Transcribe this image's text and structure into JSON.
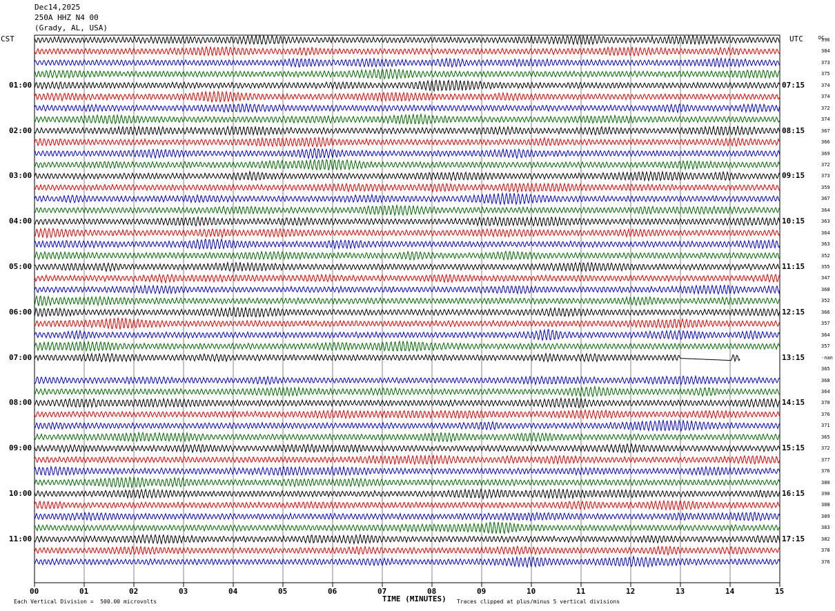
{
  "header": {
    "date": "Dec14,2025",
    "station": "250A HHZ N4 00",
    "location": "(Grady, AL, USA)"
  },
  "left_tz": "CST",
  "right_tz": "UTC",
  "dc_label": "DC",
  "footer": {
    "scale": "Each Vertical Division =  500.00 microvolts",
    "clip": "Traces clipped at plus/minus 5 vertical divisions"
  },
  "chart_data": {
    "type": "line",
    "title": "Dec14,2025 250A HHZ N4 00 (Grady, AL, USA)",
    "xlabel": "TIME (MINUTES)",
    "ylabel": "",
    "xlim": [
      0,
      15
    ],
    "x_ticks": [
      "00",
      "01",
      "02",
      "03",
      "04",
      "05",
      "06",
      "07",
      "08",
      "09",
      "10",
      "11",
      "12",
      "13",
      "14",
      "15"
    ],
    "trace_colors": [
      "#000000",
      "#e00000",
      "#0000cc",
      "#006600"
    ],
    "row_minutes": 15,
    "left_hour_labels": [
      "01:00",
      "02:00",
      "03:00",
      "04:00",
      "05:00",
      "06:00",
      "07:00",
      "08:00",
      "09:00",
      "10:00",
      "11:00"
    ],
    "right_hour_labels": [
      "07:15",
      "08:15",
      "09:15",
      "10:15",
      "11:15",
      "12:15",
      "13:15",
      "14:15",
      "15:15",
      "16:15",
      "17:15"
    ],
    "dc_values": [
      "396",
      "384",
      "373",
      "375",
      "374",
      "374",
      "372",
      "374",
      "367",
      "366",
      "369",
      "372",
      "373",
      "359",
      "367",
      "364",
      "363",
      "364",
      "363",
      "352",
      "355",
      "347",
      "368",
      "352",
      "366",
      "357",
      "364",
      "357",
      "-nan",
      "365",
      "368",
      "364",
      "370",
      "376",
      "371",
      "365",
      "372",
      "377",
      "376",
      "380",
      "390",
      "388",
      "389",
      "383",
      "382",
      "378",
      "376"
    ],
    "blank_rows": [
      29
    ],
    "partial_rows": [
      {
        "row": 28,
        "end_minute": 14.2,
        "flat_from": 13.0,
        "flat_to": 14.0
      }
    ]
  }
}
